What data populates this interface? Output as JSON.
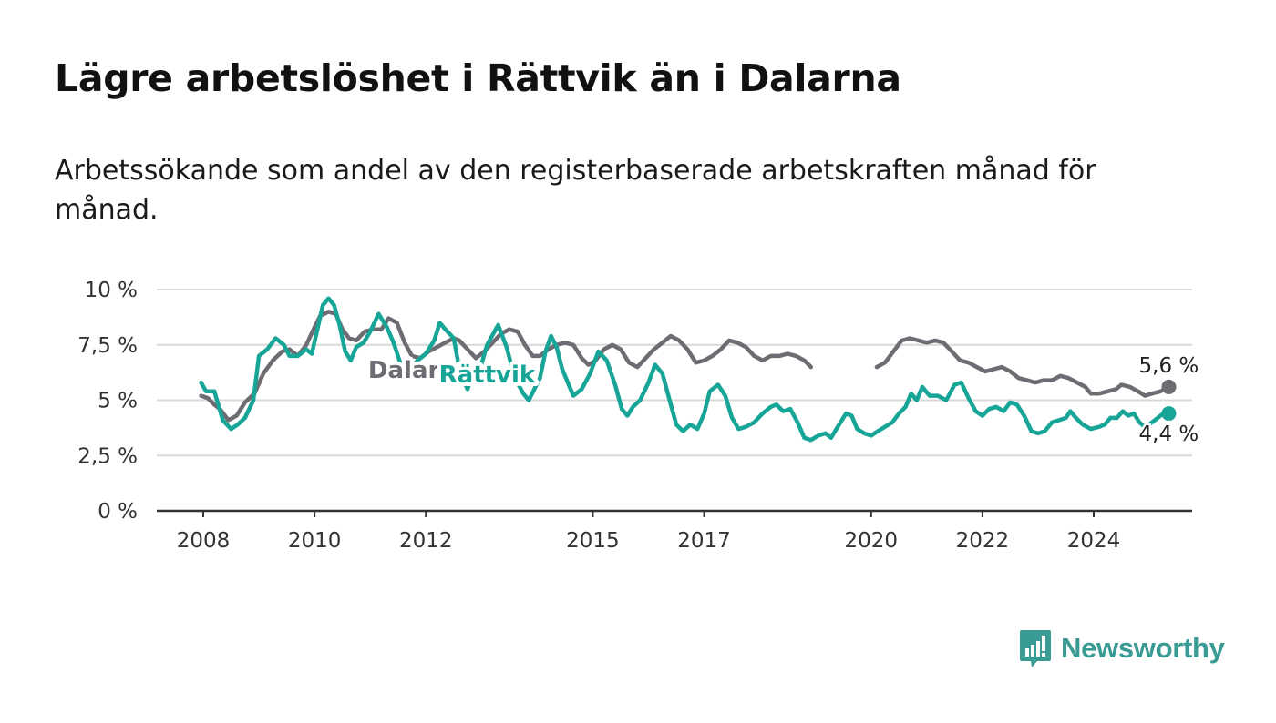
{
  "title": "Lägre arbetslöshet i Rättvik än i Dalarna",
  "subtitle": "Arbetssökande som andel av den registerbaserade arbetskraften månad för månad.",
  "logo_text": "Newsworthy",
  "chart_data": {
    "type": "line",
    "title": "Lägre arbetslöshet i Rättvik än i Dalarna",
    "subtitle": "Arbetssökande som andel av den registerbaserade arbetskraften månad för månad.",
    "xlabel": "",
    "ylabel": "",
    "xlim": [
      2007.7,
      2026.3
    ],
    "ylim": [
      0,
      10
    ],
    "yticks": [
      0,
      2.5,
      5,
      7.5,
      10
    ],
    "ytick_labels": [
      "0 %",
      "2,5 %",
      "5 %",
      "7,5 %",
      "10 %"
    ],
    "xticks": [
      2008,
      2010,
      2012,
      2015,
      2017,
      2020,
      2022,
      2024
    ],
    "xtick_labels": [
      "2008",
      "2010",
      "2012",
      "2015",
      "2017",
      "2020",
      "2022",
      "2024"
    ],
    "grid": true,
    "legend": "none (inline series labels)",
    "series": [
      {
        "name": "Dalarna",
        "color": "#6e6c72",
        "label_at": [
          2011.9,
          6.0
        ],
        "end_label": "5,6 %",
        "points": [
          [
            2007.96,
            5.2
          ],
          [
            2008.08,
            5.1
          ],
          [
            2008.2,
            4.8
          ],
          [
            2008.3,
            4.6
          ],
          [
            2008.45,
            4.1
          ],
          [
            2008.6,
            4.3
          ],
          [
            2008.75,
            4.9
          ],
          [
            2008.92,
            5.3
          ],
          [
            2009.08,
            6.2
          ],
          [
            2009.25,
            6.8
          ],
          [
            2009.42,
            7.2
          ],
          [
            2009.55,
            7.3
          ],
          [
            2009.7,
            7.0
          ],
          [
            2009.85,
            7.5
          ],
          [
            2010.0,
            8.3
          ],
          [
            2010.1,
            8.8
          ],
          [
            2010.25,
            9.0
          ],
          [
            2010.38,
            8.9
          ],
          [
            2010.5,
            8.2
          ],
          [
            2010.62,
            7.8
          ],
          [
            2010.75,
            7.7
          ],
          [
            2010.9,
            8.1
          ],
          [
            2011.05,
            8.2
          ],
          [
            2011.2,
            8.2
          ],
          [
            2011.33,
            8.7
          ],
          [
            2011.48,
            8.5
          ],
          [
            2011.62,
            7.6
          ],
          [
            2011.75,
            7.0
          ],
          [
            2011.9,
            6.9
          ],
          [
            2012.05,
            7.2
          ],
          [
            2012.2,
            7.4
          ],
          [
            2012.35,
            7.6
          ],
          [
            2012.5,
            7.8
          ],
          [
            2012.6,
            7.7
          ],
          [
            2012.75,
            7.3
          ],
          [
            2012.9,
            6.9
          ],
          [
            2013.05,
            7.2
          ],
          [
            2013.2,
            7.6
          ],
          [
            2013.35,
            8.0
          ],
          [
            2013.5,
            8.2
          ],
          [
            2013.65,
            8.1
          ],
          [
            2013.78,
            7.5
          ],
          [
            2013.92,
            7.0
          ],
          [
            2014.05,
            7.0
          ],
          [
            2014.2,
            7.3
          ],
          [
            2014.35,
            7.5
          ],
          [
            2014.5,
            7.6
          ],
          [
            2014.65,
            7.5
          ],
          [
            2014.8,
            6.9
          ],
          [
            2014.92,
            6.6
          ],
          [
            2015.05,
            6.8
          ],
          [
            2015.2,
            7.3
          ],
          [
            2015.35,
            7.5
          ],
          [
            2015.5,
            7.3
          ],
          [
            2015.65,
            6.7
          ],
          [
            2015.8,
            6.5
          ],
          [
            2015.95,
            6.9
          ],
          [
            2016.1,
            7.3
          ],
          [
            2016.25,
            7.6
          ],
          [
            2016.4,
            7.9
          ],
          [
            2016.55,
            7.7
          ],
          [
            2016.7,
            7.3
          ],
          [
            2016.85,
            6.7
          ],
          [
            2017.0,
            6.8
          ],
          [
            2017.15,
            7.0
          ],
          [
            2017.3,
            7.3
          ],
          [
            2017.45,
            7.7
          ],
          [
            2017.6,
            7.6
          ],
          [
            2017.75,
            7.4
          ],
          [
            2017.9,
            7.0
          ],
          [
            2018.05,
            6.8
          ],
          [
            2018.2,
            7.0
          ],
          [
            2018.35,
            7.0
          ],
          [
            2018.5,
            7.1
          ],
          [
            2018.65,
            7.0
          ],
          [
            2018.8,
            6.8
          ],
          [
            2018.92,
            6.5
          ],
          [
            2020.1,
            6.5
          ],
          [
            2020.25,
            6.7
          ],
          [
            2020.4,
            7.2
          ],
          [
            2020.55,
            7.7
          ],
          [
            2020.7,
            7.8
          ],
          [
            2020.85,
            7.7
          ],
          [
            2021.0,
            7.6
          ],
          [
            2021.15,
            7.7
          ],
          [
            2021.3,
            7.6
          ],
          [
            2021.45,
            7.2
          ],
          [
            2021.6,
            6.8
          ],
          [
            2021.75,
            6.7
          ],
          [
            2021.9,
            6.5
          ],
          [
            2022.05,
            6.3
          ],
          [
            2022.2,
            6.4
          ],
          [
            2022.35,
            6.5
          ],
          [
            2022.5,
            6.3
          ],
          [
            2022.65,
            6.0
          ],
          [
            2022.8,
            5.9
          ],
          [
            2022.95,
            5.8
          ],
          [
            2023.1,
            5.9
          ],
          [
            2023.25,
            5.9
          ],
          [
            2023.4,
            6.1
          ],
          [
            2023.55,
            6.0
          ],
          [
            2023.7,
            5.8
          ],
          [
            2023.85,
            5.6
          ],
          [
            2023.95,
            5.3
          ],
          [
            2024.1,
            5.3
          ],
          [
            2024.25,
            5.4
          ],
          [
            2024.4,
            5.5
          ],
          [
            2024.5,
            5.7
          ],
          [
            2024.65,
            5.6
          ],
          [
            2024.8,
            5.4
          ],
          [
            2024.92,
            5.2
          ],
          [
            2025.05,
            5.3
          ],
          [
            2025.2,
            5.4
          ],
          [
            2025.35,
            5.6
          ]
        ]
      },
      {
        "name": "Rättvik",
        "color": "#17a597",
        "label_at": [
          2013.1,
          5.8
        ],
        "end_label": "4,4 %",
        "points": [
          [
            2007.96,
            5.8
          ],
          [
            2008.05,
            5.4
          ],
          [
            2008.2,
            5.4
          ],
          [
            2008.35,
            4.1
          ],
          [
            2008.5,
            3.7
          ],
          [
            2008.62,
            3.9
          ],
          [
            2008.75,
            4.2
          ],
          [
            2008.9,
            5.0
          ],
          [
            2009.0,
            7.0
          ],
          [
            2009.15,
            7.3
          ],
          [
            2009.3,
            7.8
          ],
          [
            2009.45,
            7.5
          ],
          [
            2009.55,
            7.0
          ],
          [
            2009.7,
            7.0
          ],
          [
            2009.85,
            7.3
          ],
          [
            2009.95,
            7.1
          ],
          [
            2010.05,
            8.2
          ],
          [
            2010.15,
            9.3
          ],
          [
            2010.25,
            9.6
          ],
          [
            2010.35,
            9.3
          ],
          [
            2010.45,
            8.4
          ],
          [
            2010.55,
            7.2
          ],
          [
            2010.65,
            6.8
          ],
          [
            2010.75,
            7.4
          ],
          [
            2010.88,
            7.6
          ],
          [
            2011.0,
            8.1
          ],
          [
            2011.15,
            8.9
          ],
          [
            2011.3,
            8.3
          ],
          [
            2011.42,
            7.6
          ],
          [
            2011.55,
            6.6
          ],
          [
            2011.7,
            6.3
          ],
          [
            2011.85,
            6.8
          ],
          [
            2012.0,
            7.1
          ],
          [
            2012.15,
            7.7
          ],
          [
            2012.25,
            8.5
          ],
          [
            2012.35,
            8.2
          ],
          [
            2012.5,
            7.8
          ],
          [
            2012.62,
            6.2
          ],
          [
            2012.75,
            5.5
          ],
          [
            2012.85,
            6.3
          ],
          [
            2012.95,
            6.2
          ],
          [
            2013.1,
            7.5
          ],
          [
            2013.3,
            8.4
          ],
          [
            2013.45,
            7.4
          ],
          [
            2013.6,
            6.0
          ],
          [
            2013.75,
            5.3
          ],
          [
            2013.85,
            5.0
          ],
          [
            2013.95,
            5.5
          ],
          [
            2014.05,
            6.0
          ],
          [
            2014.15,
            7.2
          ],
          [
            2014.25,
            7.9
          ],
          [
            2014.35,
            7.4
          ],
          [
            2014.45,
            6.4
          ],
          [
            2014.55,
            5.8
          ],
          [
            2014.65,
            5.2
          ],
          [
            2014.8,
            5.5
          ],
          [
            2014.95,
            6.2
          ],
          [
            2015.1,
            7.2
          ],
          [
            2015.25,
            6.8
          ],
          [
            2015.4,
            5.7
          ],
          [
            2015.52,
            4.6
          ],
          [
            2015.62,
            4.3
          ],
          [
            2015.72,
            4.7
          ],
          [
            2015.85,
            5.0
          ],
          [
            2016.0,
            5.8
          ],
          [
            2016.12,
            6.6
          ],
          [
            2016.25,
            6.2
          ],
          [
            2016.38,
            5.0
          ],
          [
            2016.5,
            3.9
          ],
          [
            2016.62,
            3.6
          ],
          [
            2016.75,
            3.9
          ],
          [
            2016.88,
            3.7
          ],
          [
            2017.0,
            4.4
          ],
          [
            2017.1,
            5.4
          ],
          [
            2017.25,
            5.7
          ],
          [
            2017.38,
            5.2
          ],
          [
            2017.5,
            4.2
          ],
          [
            2017.62,
            3.7
          ],
          [
            2017.75,
            3.8
          ],
          [
            2017.9,
            4.0
          ],
          [
            2018.05,
            4.4
          ],
          [
            2018.2,
            4.7
          ],
          [
            2018.3,
            4.8
          ],
          [
            2018.42,
            4.5
          ],
          [
            2018.55,
            4.6
          ],
          [
            2018.68,
            4.0
          ],
          [
            2018.8,
            3.3
          ],
          [
            2018.92,
            3.2
          ],
          [
            2019.05,
            3.4
          ],
          [
            2019.18,
            3.5
          ],
          [
            2019.28,
            3.3
          ],
          [
            2019.4,
            3.8
          ],
          [
            2019.55,
            4.4
          ],
          [
            2019.65,
            4.3
          ],
          [
            2019.75,
            3.7
          ],
          [
            2019.88,
            3.5
          ],
          [
            2020.0,
            3.4
          ],
          [
            2020.12,
            3.6
          ],
          [
            2020.25,
            3.8
          ],
          [
            2020.38,
            4.0
          ],
          [
            2020.5,
            4.4
          ],
          [
            2020.62,
            4.7
          ],
          [
            2020.72,
            5.3
          ],
          [
            2020.82,
            5.0
          ],
          [
            2020.92,
            5.6
          ],
          [
            2021.05,
            5.2
          ],
          [
            2021.2,
            5.2
          ],
          [
            2021.35,
            5.0
          ],
          [
            2021.5,
            5.7
          ],
          [
            2021.62,
            5.8
          ],
          [
            2021.75,
            5.1
          ],
          [
            2021.88,
            4.5
          ],
          [
            2022.0,
            4.3
          ],
          [
            2022.12,
            4.6
          ],
          [
            2022.25,
            4.7
          ],
          [
            2022.38,
            4.5
          ],
          [
            2022.5,
            4.9
          ],
          [
            2022.62,
            4.8
          ],
          [
            2022.75,
            4.3
          ],
          [
            2022.88,
            3.6
          ],
          [
            2023.0,
            3.5
          ],
          [
            2023.12,
            3.6
          ],
          [
            2023.25,
            4.0
          ],
          [
            2023.38,
            4.1
          ],
          [
            2023.5,
            4.2
          ],
          [
            2023.58,
            4.5
          ],
          [
            2023.68,
            4.2
          ],
          [
            2023.8,
            3.9
          ],
          [
            2023.95,
            3.7
          ],
          [
            2024.1,
            3.8
          ],
          [
            2024.2,
            3.9
          ],
          [
            2024.3,
            4.2
          ],
          [
            2024.42,
            4.2
          ],
          [
            2024.52,
            4.5
          ],
          [
            2024.62,
            4.3
          ],
          [
            2024.72,
            4.4
          ],
          [
            2024.82,
            4.0
          ],
          [
            2024.92,
            3.8
          ],
          [
            2025.05,
            4.0
          ],
          [
            2025.15,
            4.2
          ],
          [
            2025.25,
            4.4
          ],
          [
            2025.35,
            4.4
          ]
        ]
      }
    ]
  }
}
